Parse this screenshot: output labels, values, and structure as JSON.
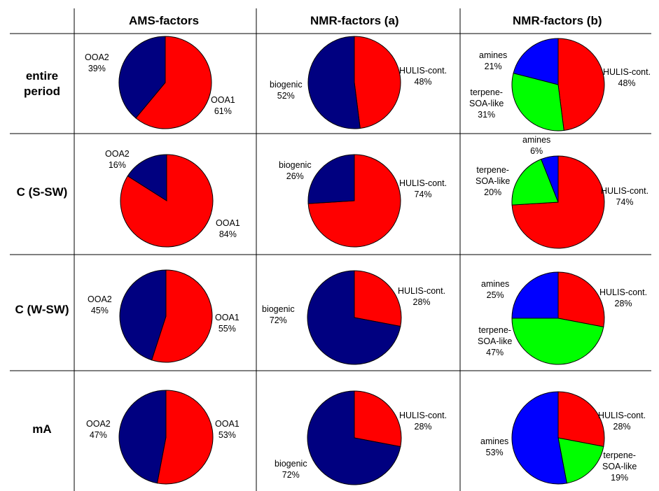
{
  "colors": {
    "OOA1": "#ff0000",
    "OOA2": "#000080",
    "HULIS-cont.": "#ff0000",
    "biogenic": "#000080",
    "amines": "#0000ff",
    "terpene-SOA-like": "#00ff00"
  },
  "columns": [
    "AMS-factors",
    "NMR-factors (a)",
    "NMR-factors (b)"
  ],
  "rows": [
    "entire period",
    "C (S-SW)",
    "C (W-SW)",
    "mA"
  ],
  "chart_data": [
    {
      "type": "pie",
      "row": "entire period",
      "column": "AMS-factors",
      "slices": [
        {
          "name": "OOA1",
          "value": 61,
          "label": "61%"
        },
        {
          "name": "OOA2",
          "value": 39,
          "label": "39%"
        }
      ]
    },
    {
      "type": "pie",
      "row": "entire period",
      "column": "NMR-factors (a)",
      "slices": [
        {
          "name": "HULIS-cont.",
          "value": 48,
          "label": "48%"
        },
        {
          "name": "biogenic",
          "value": 52,
          "label": "52%"
        }
      ]
    },
    {
      "type": "pie",
      "row": "entire period",
      "column": "NMR-factors (b)",
      "slices": [
        {
          "name": "HULIS-cont.",
          "value": 48,
          "label": "48%"
        },
        {
          "name": "terpene-SOA-like",
          "value": 31,
          "label": "31%"
        },
        {
          "name": "amines",
          "value": 21,
          "label": "21%"
        }
      ]
    },
    {
      "type": "pie",
      "row": "C (S-SW)",
      "column": "AMS-factors",
      "slices": [
        {
          "name": "OOA1",
          "value": 84,
          "label": "84%"
        },
        {
          "name": "OOA2",
          "value": 16,
          "label": "16%"
        }
      ]
    },
    {
      "type": "pie",
      "row": "C (S-SW)",
      "column": "NMR-factors (a)",
      "slices": [
        {
          "name": "HULIS-cont.",
          "value": 74,
          "label": "74%"
        },
        {
          "name": "biogenic",
          "value": 26,
          "label": "26%"
        }
      ]
    },
    {
      "type": "pie",
      "row": "C (S-SW)",
      "column": "NMR-factors (b)",
      "slices": [
        {
          "name": "HULIS-cont.",
          "value": 74,
          "label": "74%"
        },
        {
          "name": "terpene-SOA-like",
          "value": 20,
          "label": "20%"
        },
        {
          "name": "amines",
          "value": 6,
          "label": "6%"
        }
      ]
    },
    {
      "type": "pie",
      "row": "C (W-SW)",
      "column": "AMS-factors",
      "slices": [
        {
          "name": "OOA1",
          "value": 55,
          "label": "55%"
        },
        {
          "name": "OOA2",
          "value": 45,
          "label": "45%"
        }
      ]
    },
    {
      "type": "pie",
      "row": "C (W-SW)",
      "column": "NMR-factors (a)",
      "slices": [
        {
          "name": "HULIS-cont.",
          "value": 28,
          "label": "28%"
        },
        {
          "name": "biogenic",
          "value": 72,
          "label": "72%"
        }
      ]
    },
    {
      "type": "pie",
      "row": "C (W-SW)",
      "column": "NMR-factors (b)",
      "slices": [
        {
          "name": "HULIS-cont.",
          "value": 28,
          "label": "28%"
        },
        {
          "name": "terpene-SOA-like",
          "value": 47,
          "label": "47%"
        },
        {
          "name": "amines",
          "value": 25,
          "label": "25%"
        }
      ]
    },
    {
      "type": "pie",
      "row": "mA",
      "column": "AMS-factors",
      "slices": [
        {
          "name": "OOA1",
          "value": 53,
          "label": "53%"
        },
        {
          "name": "OOA2",
          "value": 47,
          "label": "47%"
        }
      ]
    },
    {
      "type": "pie",
      "row": "mA",
      "column": "NMR-factors (a)",
      "slices": [
        {
          "name": "HULIS-cont.",
          "value": 28,
          "label": "28%"
        },
        {
          "name": "biogenic",
          "value": 72,
          "label": "72%"
        }
      ]
    },
    {
      "type": "pie",
      "row": "mA",
      "column": "NMR-factors (b)",
      "slices": [
        {
          "name": "HULIS-cont.",
          "value": 28,
          "label": "28%"
        },
        {
          "name": "terpene-SOA-like",
          "value": 19,
          "label": "19%"
        },
        {
          "name": "amines",
          "value": 53,
          "label": "53%"
        }
      ]
    }
  ]
}
